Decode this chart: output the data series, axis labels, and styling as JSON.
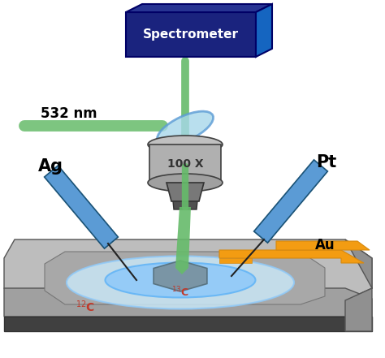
{
  "bg_color": "#ffffff",
  "spectrometer_color": "#1a237e",
  "spectrometer_text": "Spectrometer",
  "spectrometer_text_color": "#ffffff",
  "laser_color": "#66bb6a",
  "laser_label": "532 nm",
  "beam_splitter_fill": "#a8d8ea",
  "beam_splitter_edge": "#5b9bd5",
  "objective_body_color": "#9e9e9e",
  "objective_top_color": "#bdbdbd",
  "objective_bottom_color": "#616161",
  "objective_text": "100 X",
  "electrode_color": "#5b9bd5",
  "electrode_dark": "#1a5276",
  "au_color": "#f39c12",
  "au_edge": "#d68910",
  "substrate_top_color": "#bdbdbd",
  "substrate_side_color": "#808080",
  "substrate_bottom_color": "#404040",
  "liquid_outer_color": "#c8e6f5",
  "liquid_mid_color": "#90caf9",
  "graphene_color": "#78909c",
  "graphene_edge": "#546e7a",
  "label_ag": "Ag",
  "label_pt": "Pt",
  "label_au": "Au",
  "label_12c": "$^{12}$C",
  "label_13c": "$^{13}$C",
  "red_label_color": "#c0392b"
}
